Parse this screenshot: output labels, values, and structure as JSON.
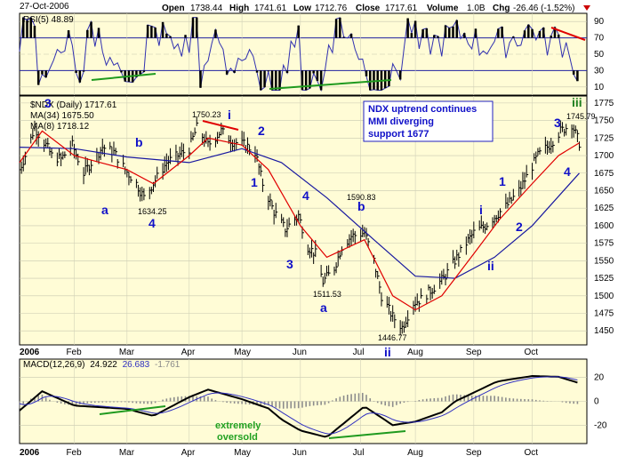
{
  "header": {
    "date": "27-Oct-2006",
    "open_label": "Open",
    "open": "1738.44",
    "high_label": "High",
    "high": "1741.61",
    "low_label": "Low",
    "low": "1712.76",
    "close_label": "Close",
    "close": "1717.61",
    "volume_label": "Volume",
    "volume": "1.0B",
    "chg_label": "Chg",
    "chg": "-26.46 (-1.52%)",
    "down_arrow_color": "#cc0000"
  },
  "rsi_panel": {
    "label": "RSI(5) 48.89",
    "ticks": [
      "90",
      "70",
      "50",
      "30",
      "10"
    ],
    "tick_values": [
      90,
      70,
      50,
      30,
      10
    ],
    "overbought": 70,
    "oversold": 30
  },
  "price_panel": {
    "symbol_label": "$NDX (Daily) 1717.61",
    "ma34_label": "MA(34) 1675.50",
    "ma8_label": "MA(8) 1718.12",
    "ma34_color": "#1818a0",
    "ma8_color": "#e00000",
    "ticks": [
      "1775",
      "1750",
      "1725",
      "1700",
      "1675",
      "1650",
      "1625",
      "1600",
      "1575",
      "1550",
      "1525",
      "1500",
      "1475",
      "1450"
    ],
    "tick_values": [
      1775,
      1750,
      1725,
      1700,
      1675,
      1650,
      1625,
      1600,
      1575,
      1550,
      1525,
      1500,
      1475,
      1450
    ],
    "note_lines": [
      "NDX uptrend continues",
      "MMI diverging",
      "support 1677"
    ],
    "price_labels": [
      "1750.23",
      "1634.25",
      "1590.83",
      "1511.53",
      "1446.77",
      "1745.79"
    ]
  },
  "wave_labels": {
    "w3_left": "3",
    "a_feb": "a",
    "b_feb": "b",
    "four_mar": "4",
    "i_apr": "i",
    "two_may": "2",
    "one_may": "1",
    "four_jun": "4",
    "three_jun": "3",
    "b_jul": "b",
    "a_jun": "a",
    "ii_jul": "ii",
    "i_sep": "i",
    "one_sep": "1",
    "two_sep": "2",
    "ii_sep": "ii",
    "three_oct": "3",
    "four_oct": "4",
    "iii_oct": "iii"
  },
  "wave_colors": {
    "blue": "#1010c8",
    "green": "#208020"
  },
  "macd_panel": {
    "label_name": "MACD(12,26,9)",
    "macd": "24.922",
    "signal": "26.683",
    "hist": "-1.761",
    "ticks": [
      "20",
      "0",
      "-20"
    ],
    "tick_values": [
      20,
      0,
      -20
    ],
    "note": [
      "extremely",
      "oversold"
    ],
    "note_color": "#20a020"
  },
  "x_axis": {
    "year": "2006",
    "months": [
      "Feb",
      "Mar",
      "Apr",
      "May",
      "Jun",
      "Jul",
      "Aug",
      "Sep",
      "Oct"
    ]
  },
  "chart_data": {
    "type": "line",
    "title": "$NDX (Daily) 1717.61",
    "x_unit": "date",
    "ylim": [
      1430,
      1785
    ],
    "series": [
      {
        "name": "$NDX",
        "x": [
          "2006-01-03",
          "2006-01-06",
          "2006-01-11",
          "2006-01-17",
          "2006-01-20",
          "2006-01-25",
          "2006-01-31",
          "2006-02-06",
          "2006-02-10",
          "2006-02-16",
          "2006-02-22",
          "2006-02-28",
          "2006-03-06",
          "2006-03-10",
          "2006-03-16",
          "2006-03-22",
          "2006-03-28",
          "2006-04-03",
          "2006-04-07",
          "2006-04-13",
          "2006-04-20",
          "2006-04-26",
          "2006-05-03",
          "2006-05-08",
          "2006-05-12",
          "2006-05-18",
          "2006-05-24",
          "2006-05-31",
          "2006-06-05",
          "2006-06-09",
          "2006-06-13",
          "2006-06-19",
          "2006-06-23",
          "2006-06-28",
          "2006-07-05",
          "2006-07-10",
          "2006-07-14",
          "2006-07-20",
          "2006-07-25",
          "2006-07-31",
          "2006-08-04",
          "2006-08-10",
          "2006-08-16",
          "2006-08-22",
          "2006-08-28",
          "2006-09-01",
          "2006-09-07",
          "2006-09-13",
          "2006-09-19",
          "2006-09-25",
          "2006-09-29",
          "2006-10-05",
          "2006-10-11",
          "2006-10-17",
          "2006-10-23",
          "2006-10-27"
        ],
        "values": [
          1680,
          1700,
          1740,
          1715,
          1700,
          1695,
          1715,
          1675,
          1690,
          1712,
          1705,
          1680,
          1660,
          1640,
          1665,
          1690,
          1700,
          1710,
          1740,
          1715,
          1735,
          1720,
          1715,
          1705,
          1660,
          1620,
          1595,
          1615,
          1570,
          1560,
          1520,
          1540,
          1570,
          1585,
          1590,
          1550,
          1500,
          1470,
          1455,
          1490,
          1495,
          1510,
          1525,
          1550,
          1575,
          1590,
          1600,
          1615,
          1630,
          1650,
          1670,
          1700,
          1715,
          1735,
          1745,
          1718
        ]
      },
      {
        "name": "MA(34)",
        "x": [
          "2006-01-03",
          "2006-02-01",
          "2006-03-01",
          "2006-04-03",
          "2006-05-01",
          "2006-05-22",
          "2006-06-15",
          "2006-07-10",
          "2006-08-01",
          "2006-08-22",
          "2006-09-12",
          "2006-10-02",
          "2006-10-27"
        ],
        "values": [
          1712,
          1710,
          1698,
          1690,
          1710,
          1690,
          1640,
          1580,
          1528,
          1525,
          1555,
          1600,
          1675
        ]
      },
      {
        "name": "MA(8)",
        "x": [
          "2006-01-03",
          "2006-01-15",
          "2006-02-01",
          "2006-02-15",
          "2006-03-01",
          "2006-03-15",
          "2006-04-03",
          "2006-04-13",
          "2006-05-01",
          "2006-05-15",
          "2006-06-01",
          "2006-06-15",
          "2006-07-05",
          "2006-07-20",
          "2006-08-01",
          "2006-08-15",
          "2006-09-01",
          "2006-09-15",
          "2006-10-02",
          "2006-10-16",
          "2006-10-27"
        ],
        "values": [
          1690,
          1735,
          1700,
          1690,
          1680,
          1660,
          1700,
          1725,
          1715,
          1680,
          1600,
          1555,
          1580,
          1500,
          1480,
          1500,
          1560,
          1610,
          1660,
          1700,
          1718
        ]
      }
    ]
  }
}
